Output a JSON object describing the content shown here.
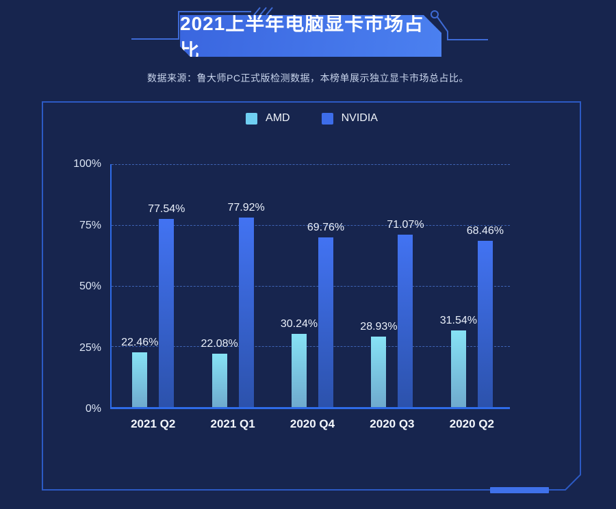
{
  "header": {
    "title": "2021上半年电脑显卡市场占比",
    "subtitle": "数据来源：鲁大师PC正式版检测数据，本榜单展示独立显卡市场总占比。"
  },
  "legend": {
    "items": [
      {
        "label": "AMD",
        "color": "#6FCFF2"
      },
      {
        "label": "NVIDIA",
        "color": "#3D6DE9"
      }
    ]
  },
  "chart_data": {
    "type": "bar",
    "title": "2021上半年电脑显卡市场占比",
    "categories": [
      "2021 Q2",
      "2021 Q1",
      "2020 Q4",
      "2020 Q3",
      "2020 Q2"
    ],
    "series": [
      {
        "name": "AMD",
        "values": [
          22.46,
          22.08,
          30.24,
          28.93,
          31.54
        ]
      },
      {
        "name": "NVIDIA",
        "values": [
          77.54,
          77.92,
          69.76,
          71.07,
          68.46
        ]
      }
    ],
    "data_labels": {
      "AMD": [
        "22.46%",
        "22.08%",
        "30.24%",
        "28.93%",
        "31.54%"
      ],
      "NVIDIA": [
        "77.54%",
        "77.92%",
        "69.76%",
        "71.07%",
        "68.46%"
      ]
    },
    "value_suffix": "%",
    "y_ticks": [
      "100%",
      "75%",
      "50%",
      "25%",
      "0%"
    ],
    "ylim": [
      0,
      100
    ],
    "xlabel": "",
    "ylabel": "",
    "grid": "horizontal-dashed",
    "legend_position": "top-center"
  },
  "colors": {
    "background": "#17254E",
    "panel_border": "#2C5AC4",
    "banner_from": "#3A66DF",
    "banner_to": "#4B80F0",
    "axis": "#2E6BE8",
    "gridline": "#466FC9",
    "amd_bar_top": "#86E2F5",
    "amd_bar_bottom": "#6FAACE",
    "nvidia_bar_top": "#4273F2",
    "nvidia_bar_bottom": "#2C52AC",
    "accent_bar": "#3F71EA",
    "decor_line": "#3E6BD6",
    "text_primary": "#FFFFFF",
    "text_secondary": "#C9D5EC"
  }
}
